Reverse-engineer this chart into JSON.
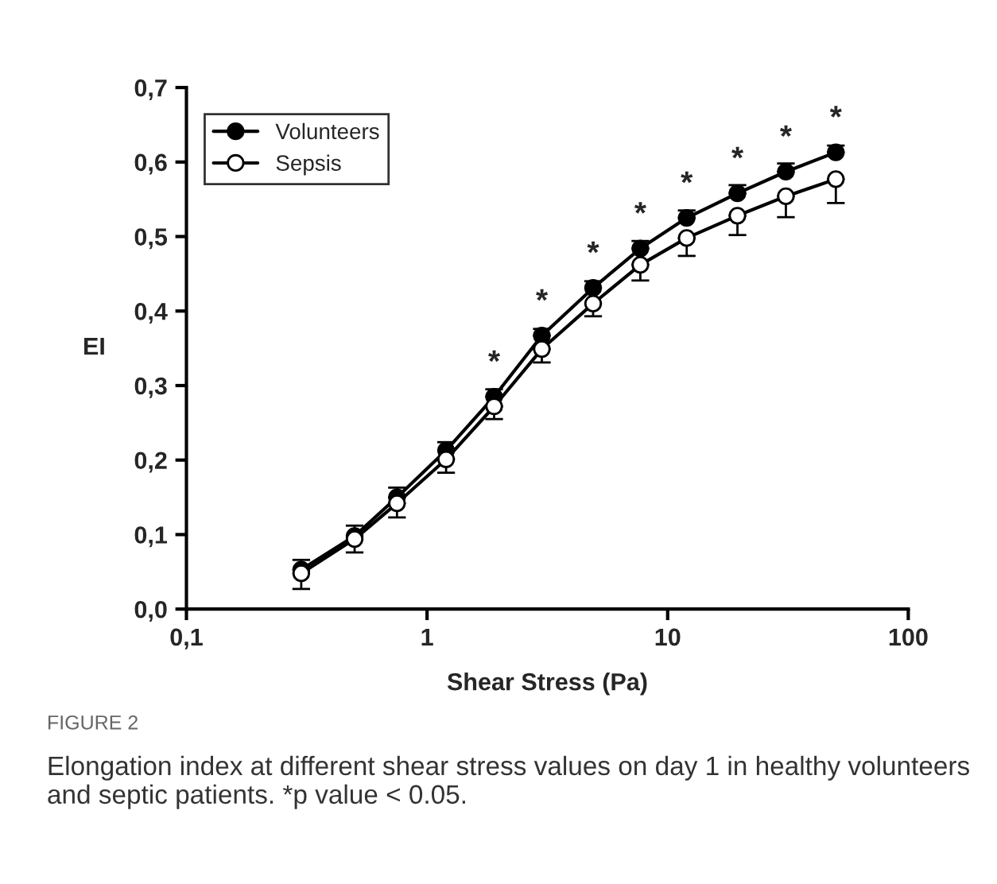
{
  "chart_data": {
    "type": "line",
    "xlabel": "Shear Stress (Pa)",
    "ylabel": "EI",
    "x": [
      0.3,
      0.5,
      0.75,
      1.2,
      1.9,
      3,
      4.9,
      7.7,
      12,
      19.5,
      31,
      50
    ],
    "series": [
      {
        "name": "Volunteers",
        "color": "#000000",
        "values": [
          0.053,
          0.098,
          0.15,
          0.213,
          0.285,
          0.367,
          0.431,
          0.484,
          0.525,
          0.558,
          0.587,
          0.613
        ],
        "errors": [
          [
            0.053,
            0.066
          ],
          [
            0.098,
            0.112
          ],
          [
            0.15,
            0.163
          ],
          [
            0.213,
            0.224
          ],
          [
            0.285,
            0.295
          ],
          [
            0.367,
            0.376
          ],
          [
            0.431,
            0.44
          ],
          [
            0.484,
            0.494
          ],
          [
            0.525,
            0.535
          ],
          [
            0.558,
            0.569
          ],
          [
            0.587,
            0.598
          ],
          [
            0.613,
            0.622
          ]
        ]
      },
      {
        "name": "Sepsis",
        "color": "#ffffff",
        "values": [
          0.048,
          0.094,
          0.142,
          0.201,
          0.272,
          0.349,
          0.41,
          0.462,
          0.498,
          0.528,
          0.554,
          0.577
        ],
        "errors": [
          [
            0.027,
            0.048
          ],
          [
            0.076,
            0.094
          ],
          [
            0.123,
            0.142
          ],
          [
            0.183,
            0.201
          ],
          [
            0.255,
            0.272
          ],
          [
            0.331,
            0.349
          ],
          [
            0.393,
            0.41
          ],
          [
            0.441,
            0.462
          ],
          [
            0.474,
            0.498
          ],
          [
            0.502,
            0.528
          ],
          [
            0.526,
            0.554
          ],
          [
            0.545,
            0.577
          ]
        ]
      }
    ],
    "log": "x",
    "xlim": [
      0.1,
      100
    ],
    "ylim": [
      0,
      0.7
    ],
    "xticks": [
      {
        "value": 0.1,
        "label": "0,1"
      },
      1,
      10,
      100
    ],
    "yticks": [
      {
        "value": 0,
        "label": "0,0"
      },
      {
        "value": 0.1,
        "label": "0,1"
      },
      {
        "value": 0.2,
        "label": "0,2"
      },
      {
        "value": 0.3,
        "label": "0,3"
      },
      {
        "value": 0.4,
        "label": "0,4"
      },
      {
        "value": 0.5,
        "label": "0,5"
      },
      {
        "value": 0.6,
        "label": "0,6"
      },
      {
        "value": 0.7,
        "label": "0,7"
      }
    ],
    "grid": false,
    "legend": "top left",
    "marker": "circle",
    "line_style": "solid",
    "annotations": [
      {
        "text": "*",
        "x": 1.9,
        "y": 0.285
      },
      {
        "text": "*",
        "x": 3,
        "y": 0.367
      },
      {
        "text": "*",
        "x": 4.9,
        "y": 0.431
      },
      {
        "text": "*",
        "x": 7.7,
        "y": 0.484
      },
      {
        "text": "*",
        "x": 12,
        "y": 0.525
      },
      {
        "text": "*",
        "x": 19.5,
        "y": 0.558
      },
      {
        "text": "*",
        "x": 31,
        "y": 0.587
      },
      {
        "text": "*",
        "x": 50,
        "y": 0.613
      },
      "FIGURE 2",
      "Elongation index at different shear stress values on day 1 in healthy volunteers and septic patients. *p value < 0.05."
    ]
  }
}
